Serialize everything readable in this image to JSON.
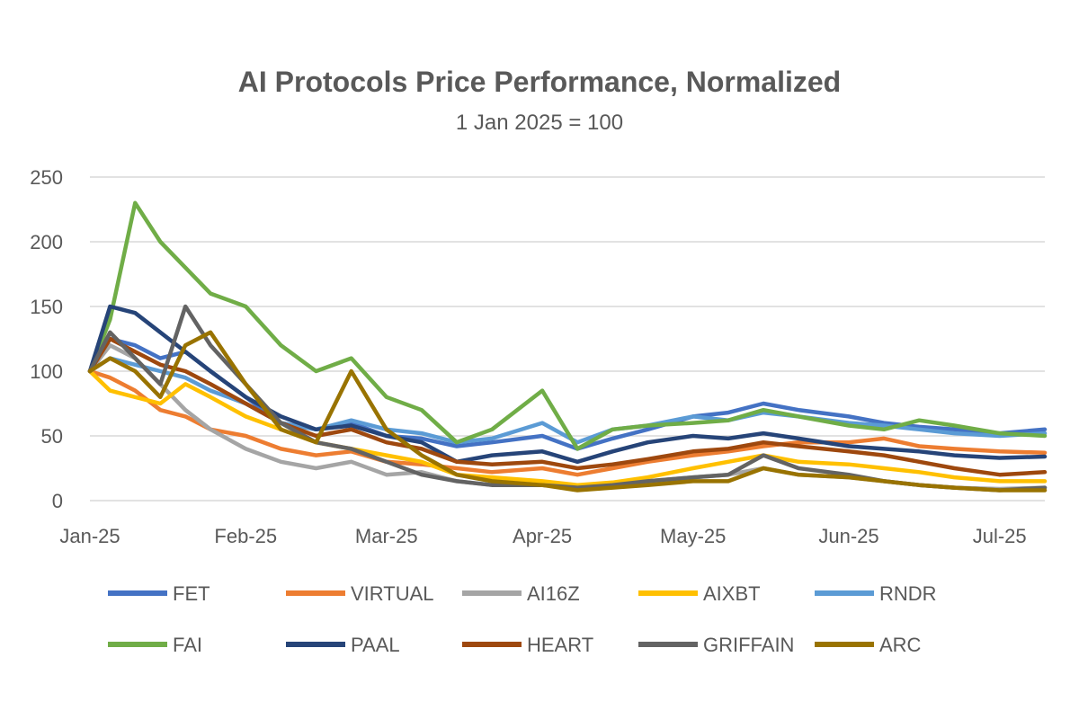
{
  "chart_data": {
    "type": "line",
    "title": "AI Protocols Price Performance, Normalized",
    "subtitle": "1 Jan 2025 = 100",
    "xlabel": "",
    "ylabel": "",
    "x_ticks": [
      {
        "label": "Jan-25",
        "date": "2025-01-01"
      },
      {
        "label": "Feb-25",
        "date": "2025-02-01"
      },
      {
        "label": "Mar-25",
        "date": "2025-03-01"
      },
      {
        "label": "Apr-25",
        "date": "2025-04-01"
      },
      {
        "label": "May-25",
        "date": "2025-05-01"
      },
      {
        "label": "Jun-25",
        "date": "2025-06-01"
      },
      {
        "label": "Jul-25",
        "date": "2025-07-01"
      }
    ],
    "xlim": [
      "2025-01-01",
      "2025-07-10"
    ],
    "ylim": [
      0,
      250
    ],
    "y_ticks": [
      0,
      50,
      100,
      150,
      200,
      250
    ],
    "grid": "horizontal",
    "legend": "bottom",
    "x": [
      "2025-01-01",
      "2025-01-05",
      "2025-01-10",
      "2025-01-15",
      "2025-01-20",
      "2025-01-25",
      "2025-02-01",
      "2025-02-08",
      "2025-02-15",
      "2025-02-22",
      "2025-03-01",
      "2025-03-08",
      "2025-03-15",
      "2025-03-22",
      "2025-04-01",
      "2025-04-08",
      "2025-04-15",
      "2025-04-22",
      "2025-05-01",
      "2025-05-08",
      "2025-05-15",
      "2025-05-22",
      "2025-06-01",
      "2025-06-08",
      "2025-06-15",
      "2025-06-22",
      "2025-07-01",
      "2025-07-10"
    ],
    "series": [
      {
        "name": "FET",
        "color": "#4472c4",
        "values": [
          100,
          125,
          120,
          110,
          115,
          100,
          80,
          60,
          55,
          60,
          50,
          48,
          42,
          45,
          50,
          40,
          48,
          55,
          65,
          68,
          75,
          70,
          65,
          60,
          57,
          55,
          52,
          55
        ]
      },
      {
        "name": "VIRTUAL",
        "color": "#ed7d31",
        "values": [
          100,
          95,
          85,
          70,
          65,
          55,
          50,
          40,
          35,
          38,
          30,
          28,
          25,
          22,
          25,
          20,
          25,
          30,
          35,
          38,
          42,
          45,
          45,
          48,
          42,
          40,
          38,
          37
        ]
      },
      {
        "name": "AI16Z",
        "color": "#a5a5a5",
        "values": [
          100,
          120,
          110,
          90,
          70,
          55,
          40,
          30,
          25,
          30,
          20,
          22,
          15,
          12,
          12,
          10,
          12,
          15,
          18,
          20,
          25,
          20,
          18,
          15,
          12,
          10,
          9,
          10
        ]
      },
      {
        "name": "AIXBT",
        "color": "#ffc000",
        "values": [
          100,
          85,
          80,
          75,
          90,
          80,
          65,
          55,
          45,
          40,
          35,
          30,
          20,
          18,
          15,
          12,
          14,
          18,
          25,
          30,
          35,
          30,
          28,
          25,
          22,
          18,
          15,
          15
        ]
      },
      {
        "name": "RNDR",
        "color": "#5b9bd5",
        "values": [
          100,
          110,
          105,
          100,
          95,
          85,
          75,
          60,
          55,
          62,
          55,
          52,
          45,
          48,
          60,
          45,
          55,
          58,
          65,
          62,
          68,
          65,
          60,
          58,
          55,
          52,
          50,
          52
        ]
      },
      {
        "name": "FAI",
        "color": "#70ad47",
        "values": [
          100,
          140,
          230,
          200,
          180,
          160,
          150,
          120,
          100,
          110,
          80,
          70,
          45,
          55,
          85,
          40,
          55,
          58,
          60,
          62,
          70,
          65,
          58,
          55,
          62,
          58,
          52,
          50
        ]
      },
      {
        "name": "PAAL",
        "color": "#264478",
        "values": [
          100,
          150,
          145,
          130,
          115,
          100,
          80,
          65,
          55,
          58,
          50,
          45,
          30,
          35,
          38,
          30,
          38,
          45,
          50,
          48,
          52,
          48,
          42,
          40,
          38,
          35,
          33,
          34
        ]
      },
      {
        "name": "HEART",
        "color": "#9e480e",
        "values": [
          100,
          125,
          115,
          105,
          100,
          90,
          75,
          60,
          50,
          55,
          45,
          40,
          30,
          28,
          30,
          25,
          28,
          32,
          38,
          40,
          45,
          42,
          38,
          35,
          30,
          25,
          20,
          22
        ]
      },
      {
        "name": "GRIFFAIN",
        "color": "#636363",
        "values": [
          100,
          130,
          110,
          90,
          150,
          120,
          90,
          60,
          45,
          40,
          30,
          20,
          15,
          12,
          12,
          10,
          12,
          15,
          18,
          20,
          35,
          25,
          20,
          15,
          12,
          10,
          8,
          10
        ]
      },
      {
        "name": "ARC",
        "color": "#997300",
        "values": [
          100,
          110,
          100,
          80,
          120,
          130,
          90,
          55,
          45,
          100,
          55,
          35,
          20,
          15,
          12,
          8,
          10,
          12,
          15,
          15,
          25,
          20,
          18,
          15,
          12,
          10,
          8,
          8
        ]
      }
    ]
  }
}
